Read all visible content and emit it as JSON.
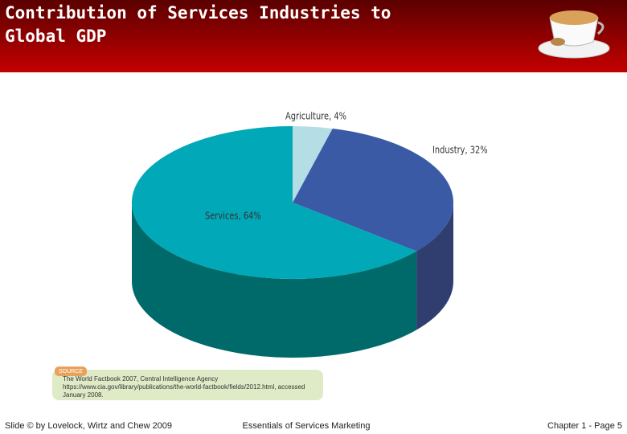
{
  "slide": {
    "title": "Contribution of Services Industries to Global  GDP",
    "source_label": "SOURCE",
    "source_text": "The World Factbook 2007, Central Intelligence Agency https://www.cia.gov/library/publications/the-world-factbook/fields/2012.html, accessed January 2008.",
    "footer_left": "Slide © by Lovelock, Wirtz and Chew 2009",
    "footer_center": "Essentials of Services Marketing",
    "footer_right": "Chapter 1 - Page 5"
  },
  "chart_data": {
    "type": "pie",
    "labels": [
      "Agriculture, 4%",
      "Industry, 32%",
      "Services, 64%"
    ],
    "values": [
      4,
      32,
      64
    ],
    "colors": [
      "#b5dde6",
      "#3a5aa6",
      "#00a8b8"
    ],
    "side_colors": [
      "#8fb9c2",
      "#2f3e6e",
      "#006a6a"
    ]
  }
}
